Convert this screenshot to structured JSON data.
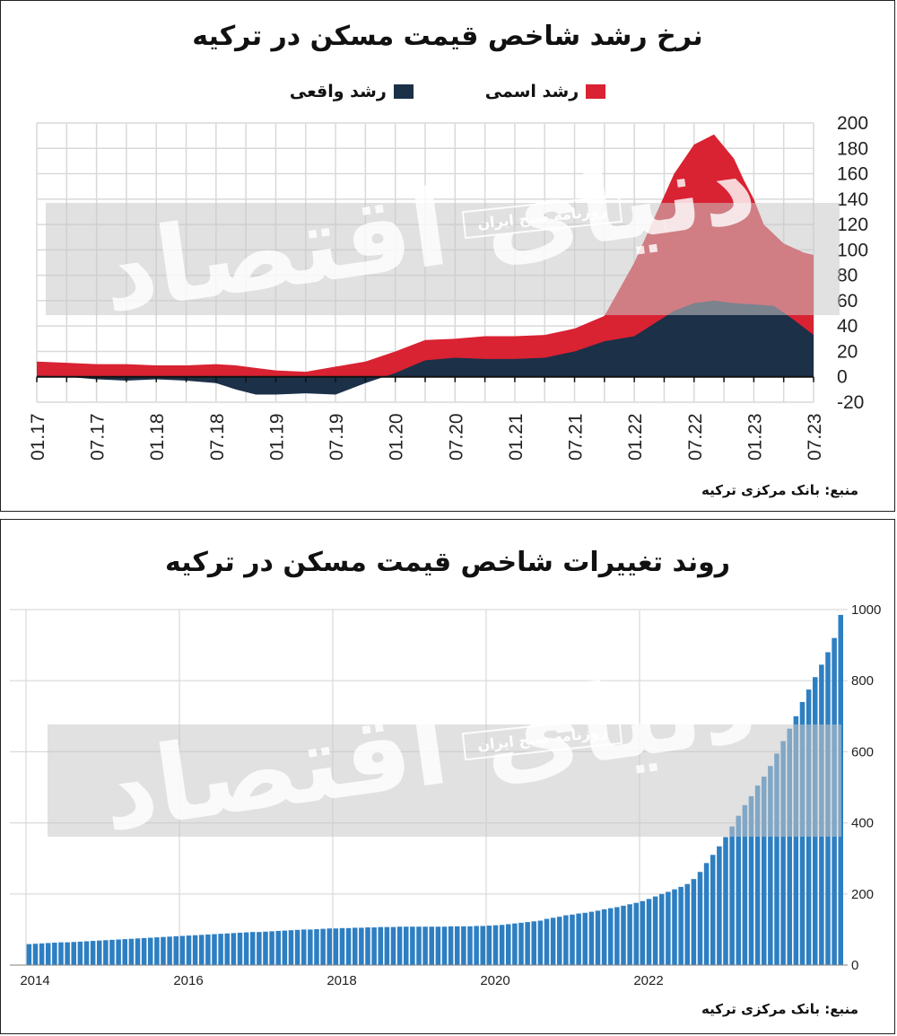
{
  "colors": {
    "nominal": "#d92232",
    "real": "#1c3048",
    "bars": "#2e7fc2",
    "grid": "#d9d9d9"
  },
  "watermark": {
    "brand": "دنیای اقتصاد",
    "newspaper": "روزنامه صبح ایران"
  },
  "chart_data": [
    {
      "type": "area",
      "title": "نرخ رشد شاخص قیمت مسکن در ترکیه",
      "source": "منبع: بانک مرکزی ترکیه",
      "legend_placement": "top",
      "grid": true,
      "ylim": [
        -20,
        200
      ],
      "yticks": [
        200,
        180,
        160,
        140,
        120,
        100,
        80,
        60,
        40,
        20,
        0,
        -20
      ],
      "xticks": [
        "01.17",
        "07.17",
        "01.18",
        "07.18",
        "01.19",
        "07.19",
        "01.20",
        "07.20",
        "01.21",
        "07.21",
        "01.22",
        "07.22",
        "01.23",
        "07.23"
      ],
      "series": [
        {
          "name": "رشد اسمی",
          "color": "#d92232",
          "x": [
            0,
            3,
            6,
            9,
            12,
            15,
            18,
            20,
            22,
            24,
            27,
            30,
            33,
            36,
            39,
            42,
            45,
            48,
            51,
            54,
            57,
            60,
            62,
            64,
            66,
            68,
            70,
            71,
            72,
            73,
            75,
            77,
            78
          ],
          "y": [
            12,
            11,
            10,
            10,
            9,
            9,
            10,
            9,
            7,
            5,
            4,
            8,
            12,
            20,
            29,
            30,
            32,
            32,
            33,
            38,
            48,
            90,
            125,
            160,
            183,
            191,
            172,
            155,
            140,
            120,
            105,
            98,
            96
          ]
        },
        {
          "name": "رشد واقعی",
          "color": "#1c3048",
          "x": [
            0,
            3,
            6,
            9,
            12,
            15,
            18,
            20,
            22,
            24,
            27,
            30,
            33,
            36,
            39,
            42,
            45,
            48,
            51,
            54,
            57,
            60,
            62,
            64,
            66,
            68,
            70,
            72,
            74,
            76,
            78
          ],
          "y": [
            1,
            0,
            -2,
            -3,
            -2,
            -3,
            -5,
            -10,
            -14,
            -14,
            -13,
            -14,
            -5,
            3,
            13,
            15,
            14,
            14,
            15,
            20,
            28,
            32,
            42,
            52,
            58,
            60,
            58,
            57,
            56,
            45,
            33
          ]
        }
      ]
    },
    {
      "type": "bar",
      "title": "روند تغییرات شاخص قیمت مسکن در ترکیه",
      "source": "منبع: بانک مرکزی ترکیه",
      "grid": true,
      "ylim": [
        0,
        1000
      ],
      "yticks": [
        1000,
        800,
        600,
        400,
        200,
        0
      ],
      "xticks": [
        "2014",
        "2016",
        "2018",
        "2020",
        "2022"
      ],
      "x_start": "2014-01",
      "series": [
        {
          "name": "",
          "color": "#2e7fc2",
          "values": [
            59,
            60,
            61,
            62,
            63,
            64,
            64,
            65,
            66,
            67,
            68,
            69,
            70,
            71,
            72,
            73,
            74,
            75,
            76,
            77,
            78,
            79,
            80,
            81,
            82,
            83,
            84,
            85,
            86,
            87,
            88,
            89,
            90,
            91,
            92,
            93,
            93,
            94,
            95,
            96,
            97,
            98,
            99,
            100,
            100,
            101,
            102,
            103,
            103,
            104,
            104,
            105,
            105,
            106,
            106,
            107,
            107,
            107,
            108,
            108,
            108,
            108,
            108,
            108,
            108,
            108,
            109,
            109,
            109,
            109,
            110,
            110,
            111,
            112,
            113,
            115,
            117,
            119,
            121,
            123,
            125,
            130,
            133,
            136,
            140,
            142,
            145,
            147,
            150,
            153,
            157,
            160,
            163,
            167,
            171,
            175,
            180,
            186,
            193,
            200,
            206,
            213,
            220,
            228,
            242,
            262,
            287,
            310,
            334,
            360,
            390,
            420,
            450,
            475,
            505,
            530,
            560,
            595,
            630,
            665,
            700,
            740,
            775,
            810,
            845,
            880,
            920,
            985
          ]
        }
      ]
    }
  ]
}
